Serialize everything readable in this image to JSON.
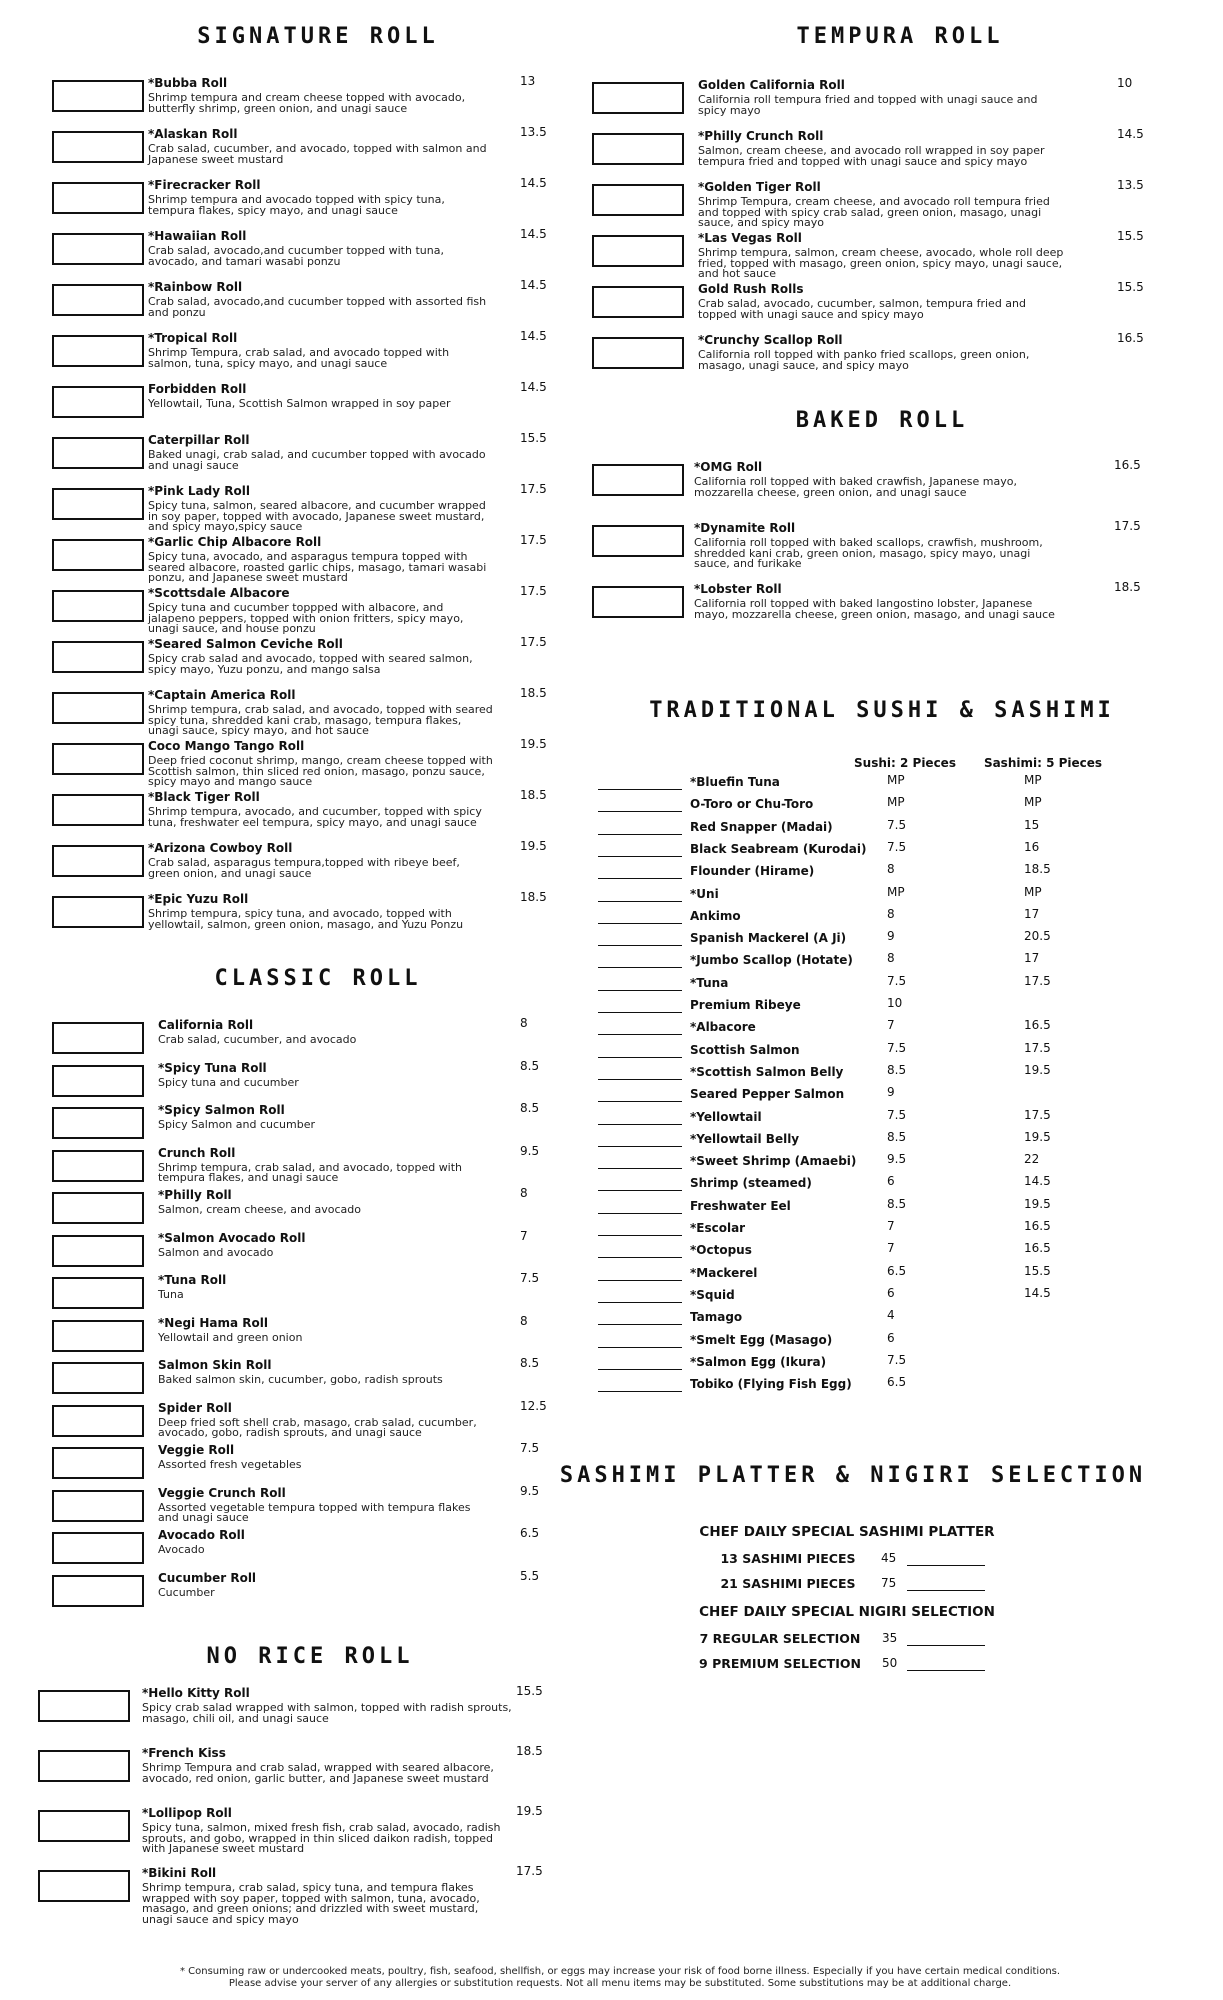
{
  "signature_roll": {
    "title": "SIGNATURE ROLL",
    "items": [
      {
        "name": "*Bubba Roll",
        "price": 13,
        "desc": "Shrimp tempura and cream cheese topped with avocado, butterfly shrimp, green onion, and unagi sauce"
      },
      {
        "name": "*Alaskan Roll",
        "price": 13.5,
        "desc": "Crab salad, cucumber, and avocado, topped with salmon and Japanese sweet mustard"
      },
      {
        "name": "*Firecracker Roll",
        "price": 14.5,
        "desc": "Shrimp tempura and avocado topped with spicy tuna, tempura flakes, spicy mayo, and unagi sauce"
      },
      {
        "name": "*Hawaiian Roll",
        "price": 14.5,
        "desc": "Crab salad, avocado,and cucumber topped with tuna, avocado, and tamari wasabi ponzu"
      },
      {
        "name": "*Rainbow Roll",
        "price": 14.5,
        "desc": "Crab salad, avocado,and cucumber topped with assorted fish and ponzu"
      },
      {
        "name": "*Tropical Roll",
        "price": 14.5,
        "desc": "Shrimp Tempura, crab salad, and avocado topped with salmon, tuna, spicy mayo, and unagi sauce"
      },
      {
        "name": "Forbidden Roll",
        "price": 14.5,
        "desc": "Yellowtail, Tuna, Scottish Salmon  wrapped in soy paper"
      },
      {
        "name": "Caterpillar Roll",
        "price": 15.5,
        "desc": "Baked unagi, crab salad, and cucumber topped with avocado and unagi sauce"
      },
      {
        "name": "*Pink Lady Roll",
        "price": 17.5,
        "desc": "Spicy tuna, salmon, seared albacore, and cucumber wrapped in soy paper, topped with avocado, Japanese sweet mustard, and spicy mayo,spicy sauce"
      },
      {
        "name": "*Garlic Chip Albacore Roll",
        "price": 17.5,
        "desc": "Spicy tuna, avocado, and asparagus tempura topped with seared albacore, roasted garlic chips, masago, tamari wasabi ponzu, and Japanese sweet mustard"
      },
      {
        "name": "*Scottsdale Albacore",
        "price": 17.5,
        "desc": "Spicy tuna and cucumber toppped with albacore, and jalapeno peppers, topped with onion fritters, spicy mayo, unagi sauce, and house ponzu"
      },
      {
        "name": "*Seared Salmon Ceviche Roll",
        "price": 17.5,
        "desc": "Spicy crab salad and avocado, topped with seared salmon, spicy mayo, Yuzu ponzu, and mango salsa"
      },
      {
        "name": "*Captain America Roll",
        "price": 18.5,
        "desc": "Shrimp tempura, crab salad, and avocado, topped with seared spicy tuna, shredded kani crab, masago, tempura flakes, unagi sauce, spicy mayo, and hot sauce"
      },
      {
        "name": "Coco Mango Tango Roll",
        "price": 19.5,
        "desc": "Deep fried coconut shrimp, mango, cream cheese topped with Scottish salmon, thin sliced red onion, masago, ponzu sauce, spicy mayo and mango sauce"
      },
      {
        "name": "*Black Tiger Roll",
        "price": 18.5,
        "desc": "Shrimp tempura, avocado, and cucumber, topped with spicy tuna, freshwater eel tempura, spicy mayo, and unagi sauce"
      },
      {
        "name": "*Arizona Cowboy Roll",
        "price": 19.5,
        "desc": "Crab salad, asparagus tempura,topped with ribeye beef, green onion, and unagi sauce"
      },
      {
        "name": "*Epic Yuzu Roll",
        "price": 18.5,
        "desc": "Shrimp tempura, spicy tuna, and avocado, topped with yellowtail, salmon, green onion, masago, and Yuzu Ponzu"
      }
    ]
  },
  "classic_roll": {
    "title": "CLASSIC ROLL",
    "items": [
      {
        "name": "California Roll",
        "price": 8,
        "desc": "Crab salad, cucumber, and avocado"
      },
      {
        "name": "*Spicy Tuna Roll",
        "price": 8.5,
        "desc": "Spicy tuna and cucumber"
      },
      {
        "name": "*Spicy Salmon Roll",
        "price": 8.5,
        "desc": "Spicy Salmon and cucumber"
      },
      {
        "name": "Crunch Roll",
        "price": 9.5,
        "desc": "Shrimp tempura, crab salad, and avocado, topped with tempura flakes, and unagi sauce"
      },
      {
        "name": "*Philly Roll",
        "price": 8,
        "desc": "Salmon, cream cheese, and avocado"
      },
      {
        "name": "*Salmon Avocado Roll",
        "price": 7,
        "desc": "Salmon and avocado"
      },
      {
        "name": "*Tuna Roll",
        "price": 7.5,
        "desc": "Tuna"
      },
      {
        "name": "*Negi Hama Roll",
        "price": 8,
        "desc": "Yellowtail and green onion"
      },
      {
        "name": "Salmon Skin Roll",
        "price": 8.5,
        "desc": "Baked salmon skin, cucumber, gobo, radish sprouts"
      },
      {
        "name": "Spider Roll",
        "price": 12.5,
        "desc": "Deep fried soft shell crab, masago, crab salad, cucumber, avocado, gobo, radish sprouts, and unagi sauce"
      },
      {
        "name": "Veggie Roll",
        "price": 7.5,
        "desc": "Assorted fresh vegetables"
      },
      {
        "name": "Veggie Crunch Roll",
        "price": 9.5,
        "desc": "Assorted vegetable tempura topped with tempura flakes and unagi sauce"
      },
      {
        "name": "Avocado Roll",
        "price": 6.5,
        "desc": "Avocado"
      },
      {
        "name": "Cucumber Roll",
        "price": 5.5,
        "desc": "Cucumber"
      }
    ]
  },
  "no_rice_roll": {
    "title": "NO RICE ROLL",
    "items": [
      {
        "name": "*Hello Kitty Roll",
        "price": 15.5,
        "desc": "Spicy crab salad wrapped with salmon, topped with radish sprouts, masago, chili oil, and unagi sauce"
      },
      {
        "name": "*French Kiss",
        "price": 18.5,
        "desc": "Shrimp Tempura and crab salad, wrapped with seared albacore, avocado, red onion, garlic butter, and Japanese sweet mustard"
      },
      {
        "name": "*Lollipop Roll",
        "price": 19.5,
        "desc": "Spicy tuna, salmon, mixed fresh fish, crab salad, avocado, radish sprouts, and gobo, wrapped in thin sliced daikon radish, topped with Japanese sweet mustard"
      },
      {
        "name": "*Bikini Roll",
        "price": 17.5,
        "desc": "Shrimp tempura, crab salad, spicy tuna, and tempura flakes wrapped with soy paper, topped with salmon, tuna, avocado, masago, and green onions; and drizzled with sweet mustard, unagi sauce and spicy mayo"
      }
    ]
  },
  "tempura_roll": {
    "title": "TEMPURA ROLL",
    "items": [
      {
        "name": "Golden California Roll",
        "price": 10,
        "desc": "California roll tempura fried and topped with unagi sauce and spicy mayo"
      },
      {
        "name": "*Philly Crunch Roll",
        "price": 14.5,
        "desc": "Salmon, cream cheese, and avocado roll wrapped in soy paper tempura fried and topped with unagi sauce and spicy mayo"
      },
      {
        "name": "*Golden Tiger Roll",
        "price": 13.5,
        "desc": "Shrimp Tempura, cream cheese, and avocado roll tempura fried and topped with spicy crab salad, green onion, masago, unagi sauce, and spicy mayo"
      },
      {
        "name": "*Las Vegas Roll",
        "price": 15.5,
        "desc": "Shrimp tempura, salmon, cream cheese, avocado, whole roll deep fried, topped with masago, green onion, spicy mayo, unagi sauce, and hot sauce"
      },
      {
        "name": "Gold Rush Rolls",
        "price": 15.5,
        "desc": "Crab salad, avocado, cucumber, salmon, tempura fried and topped with unagi sauce and spicy mayo"
      },
      {
        "name": "*Crunchy Scallop Roll",
        "price": 16.5,
        "desc": "California roll topped with panko fried scallops, green onion, masago, unagi sauce, and spicy mayo"
      }
    ]
  },
  "baked_roll": {
    "title": "BAKED ROLL",
    "items": [
      {
        "name": "*OMG Roll",
        "price": 16.5,
        "desc": "California roll topped with baked crawfish, Japanese mayo, mozzarella cheese, green onion, and unagi sauce"
      },
      {
        "name": "*Dynamite Roll",
        "price": 17.5,
        "desc": "California roll topped with baked scallops, crawfish, mushroom, shredded kani crab, green onion, masago, spicy mayo, unagi sauce, and furikake"
      },
      {
        "name": "*Lobster Roll",
        "price": 18.5,
        "desc": "California roll topped with baked langostino lobster, Japanese mayo, mozzarella cheese, green onion, masago, and unagi sauce"
      }
    ]
  },
  "traditional": {
    "title": "TRADITIONAL SUSHI & SASHIMI",
    "headers": [
      "Sushi: 2 Pieces",
      "Sashimi: 5 Pieces"
    ],
    "rows": [
      {
        "name": "*Bluefin Tuna",
        "sushi": "MP",
        "sashimi": "MP"
      },
      {
        "name": "O-Toro or Chu-Toro",
        "sushi": "MP",
        "sashimi": "MP"
      },
      {
        "name": "Red Snapper (Madai)",
        "sushi": 7.5,
        "sashimi": 15
      },
      {
        "name": "Black Seabream (Kurodai)",
        "sushi": 7.5,
        "sashimi": 16
      },
      {
        "name": "Flounder (Hirame)",
        "sushi": 8,
        "sashimi": 18.5
      },
      {
        "name": "*Uni",
        "sushi": "MP",
        "sashimi": "MP"
      },
      {
        "name": "Ankimo",
        "sushi": 8,
        "sashimi": 17
      },
      {
        "name": "Spanish Mackerel (A Ji)",
        "sushi": 9,
        "sashimi": 20.5
      },
      {
        "name": "*Jumbo Scallop (Hotate)",
        "sushi": 8,
        "sashimi": 17
      },
      {
        "name": "*Tuna",
        "sushi": 7.5,
        "sashimi": 17.5
      },
      {
        "name": "Premium Ribeye",
        "sushi": 10
      },
      {
        "name": "*Albacore",
        "sushi": 7,
        "sashimi": 16.5
      },
      {
        "name": "Scottish Salmon",
        "sushi": 7.5,
        "sashimi": 17.5
      },
      {
        "name": "*Scottish Salmon Belly",
        "sushi": 8.5,
        "sashimi": 19.5
      },
      {
        "name": "Seared Pepper Salmon",
        "sushi": 9
      },
      {
        "name": "*Yellowtail",
        "sushi": 7.5,
        "sashimi": 17.5
      },
      {
        "name": "*Yellowtail Belly",
        "sushi": 8.5,
        "sashimi": 19.5
      },
      {
        "name": "*Sweet Shrimp (Amaebi)",
        "sushi": 9.5,
        "sashimi": 22
      },
      {
        "name": "Shrimp (steamed)",
        "sushi": 6,
        "sashimi": 14.5
      },
      {
        "name": "Freshwater Eel",
        "sushi": 8.5,
        "sashimi": 19.5
      },
      {
        "name": "*Escolar",
        "sushi": 7,
        "sashimi": 16.5
      },
      {
        "name": "*Octopus",
        "sushi": 7,
        "sashimi": 16.5
      },
      {
        "name": "*Mackerel",
        "sushi": 6.5,
        "sashimi": 15.5
      },
      {
        "name": "*Squid",
        "sushi": 6,
        "sashimi": 14.5
      },
      {
        "name": "Tamago",
        "sushi": 4
      },
      {
        "name": "*Smelt Egg (Masago)",
        "sushi": 6
      },
      {
        "name": "*Salmon Egg (Ikura)",
        "sushi": 7.5
      },
      {
        "name": "Tobiko (Flying Fish Egg)",
        "sushi": 6.5
      }
    ]
  },
  "platter": {
    "title": "SASHIMI PLATTER & NIGIRI SELECTION",
    "groups": [
      {
        "heading": "CHEF  DAILY SPECIAL  SASHIMI PLATTER",
        "rows": [
          {
            "label": "13 SASHIMI PIECES",
            "price": 45
          },
          {
            "label": "21 SASHIMI PIECES",
            "price": 75
          }
        ]
      },
      {
        "heading": "CHEF  DAILY SPECIAL NIGIRI SELECTION",
        "rows": [
          {
            "label": "7 REGULAR  SELECTION",
            "price": 35
          },
          {
            "label": "9 PREMIUM  SELECTION",
            "price": 50
          }
        ]
      }
    ]
  },
  "footnote": [
    "* Consuming raw or undercooked meats, poultry, fish, seafood, shellfish, or eggs may increase your risk of food borne illness. Especially if you have certain medical conditions.",
    "Please advise your server of any allergies or substitution requests. Not all menu items may be substituted. Some substitutions may be at additional charge."
  ]
}
